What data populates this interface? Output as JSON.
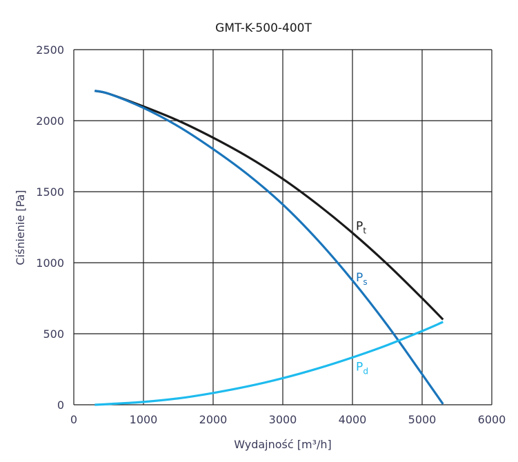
{
  "chart_data": {
    "type": "line",
    "title": "GMT-K-500-400T",
    "xlabel": "Wydajność [m³/h]",
    "ylabel": "Ciśnienie [Pa]",
    "xlim": [
      0,
      6000
    ],
    "ylim": [
      0,
      2500
    ],
    "xticks": [
      0,
      1000,
      2000,
      3000,
      4000,
      5000,
      6000
    ],
    "yticks": [
      0,
      500,
      1000,
      1500,
      2000,
      2500
    ],
    "grid": true,
    "series": [
      {
        "name": "Pt",
        "label_main": "P",
        "label_sub": "t",
        "color": "#1a1a1a",
        "label_at": [
          4050,
          1230
        ],
        "x": [
          300,
          500,
          1000,
          1500,
          2000,
          2500,
          3000,
          3500,
          4000,
          4500,
          5000,
          5300
        ],
        "y": [
          2210,
          2190,
          2100,
          2000,
          1880,
          1745,
          1590,
          1410,
          1210,
          990,
          750,
          600
        ]
      },
      {
        "name": "Ps",
        "label_main": "P",
        "label_sub": "s",
        "color": "#1a75bb",
        "label_at": [
          4050,
          870
        ],
        "x": [
          300,
          500,
          1000,
          1500,
          2000,
          2500,
          3000,
          3500,
          4000,
          4500,
          5000,
          5300
        ],
        "y": [
          2210,
          2190,
          2090,
          1960,
          1800,
          1620,
          1410,
          1160,
          875,
          560,
          215,
          5
        ]
      },
      {
        "name": "Pd",
        "label_main": "P",
        "label_sub": "d",
        "color": "#1ebbee",
        "label_at": [
          4050,
          240
        ],
        "x": [
          300,
          500,
          1000,
          1500,
          2000,
          2500,
          3000,
          3500,
          4000,
          4500,
          5000,
          5300
        ],
        "y": [
          0,
          5,
          20,
          45,
          83,
          130,
          187,
          255,
          333,
          420,
          519,
          583
        ]
      }
    ]
  }
}
